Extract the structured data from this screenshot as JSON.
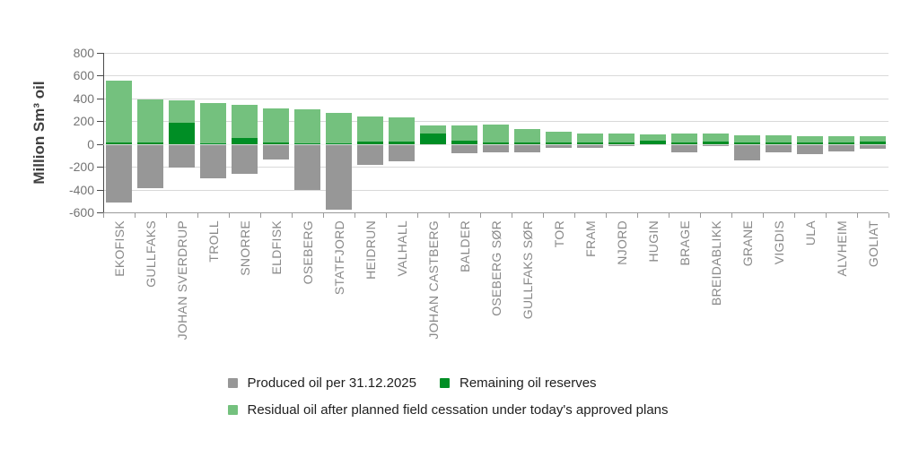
{
  "chart_data": {
    "type": "bar",
    "stacked": true,
    "title": "",
    "xlabel": "",
    "ylabel": "Million Sm³ oil",
    "ylim": [
      -600,
      800
    ],
    "yticks": [
      800,
      600,
      400,
      200,
      0,
      -200,
      -400,
      -600
    ],
    "grid": true,
    "legend_position": "bottom",
    "categories": [
      "EKOFISK",
      "GULLFAKS",
      "JOHAN SVERDRUP",
      "TROLL",
      "SNORRE",
      "ELDFISK",
      "OSEBERG",
      "STATFJORD",
      "HEIDRUN",
      "VALHALL",
      "JOHAN CASTBERG",
      "BALDER",
      "OSEBERG SØR",
      "GULLFAKS SØR",
      "TOR",
      "FRAM",
      "NJORD",
      "HUGIN",
      "BRAGE",
      "BREIDABLIKK",
      "GRANE",
      "VIGDIS",
      "ULA",
      "ALVHEIM",
      "GOLIAT"
    ],
    "series": [
      {
        "name": "Produced oil per 31.12.2025",
        "color": "#979797",
        "values": [
          -510,
          -385,
          -210,
          -300,
          -260,
          -135,
          -400,
          -575,
          -180,
          -150,
          -5,
          -80,
          -70,
          -70,
          -30,
          -35,
          -20,
          -10,
          -70,
          -15,
          -145,
          -70,
          -85,
          -65,
          -45
        ]
      },
      {
        "name": "Remaining oil reserves",
        "color": "#008e25",
        "values": [
          15,
          10,
          190,
          5,
          55,
          15,
          5,
          5,
          25,
          25,
          90,
          30,
          15,
          10,
          10,
          15,
          10,
          30,
          15,
          25,
          10,
          15,
          10,
          15,
          20
        ]
      },
      {
        "name": "Residual oil after planned field cessation under today's approved plans",
        "color": "#74c17e",
        "values": [
          540,
          380,
          195,
          355,
          290,
          295,
          300,
          270,
          220,
          210,
          70,
          135,
          155,
          120,
          100,
          80,
          80,
          55,
          75,
          70,
          70,
          65,
          60,
          55,
          45
        ]
      }
    ],
    "colors": {
      "grid": "#d9d9d9",
      "y_axis": "#4a4a4a",
      "x_axis": "#9a9a9a",
      "y_tick_text": "#757575",
      "x_tick_text": "#8a8a8a",
      "legend_text": "#1f1f1f"
    }
  }
}
